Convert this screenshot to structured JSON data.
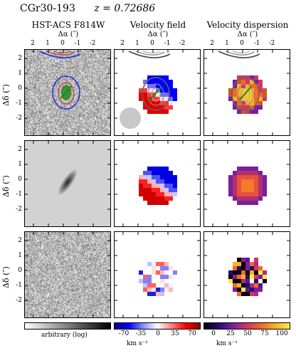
{
  "header": {
    "name": "CGr30-193",
    "redshift": "z = 0.72686"
  },
  "columns": [
    {
      "title": "HST-ACS F814W",
      "xlabel": "Δα (″)"
    },
    {
      "title": "Velocity field",
      "xlabel": "Δα (″)"
    },
    {
      "title": "Velocity dispersion",
      "xlabel": "Δα (″)"
    }
  ],
  "x_ticks": [
    "2",
    "1",
    "0",
    "-1",
    "-2"
  ],
  "y_ticks": [
    "2",
    "1",
    "0",
    "-1",
    "-2"
  ],
  "ylabel": "Δδ (″)",
  "colorbars": {
    "image": {
      "label": "arbitrary (log)"
    },
    "velocity": {
      "ticks": [
        "-70",
        "-35",
        "0",
        "35",
        "70"
      ],
      "unit": "km s⁻¹"
    },
    "dispersion": {
      "ticks": [
        "0",
        "25",
        "50",
        "75",
        "100"
      ],
      "unit": "km s⁻¹"
    }
  },
  "colors": {
    "velocity_neg": "#0000ff",
    "velocity_pos": "#cc0000",
    "contour_blue": "#1f2fd8",
    "contour_red": "#c0392b"
  }
}
